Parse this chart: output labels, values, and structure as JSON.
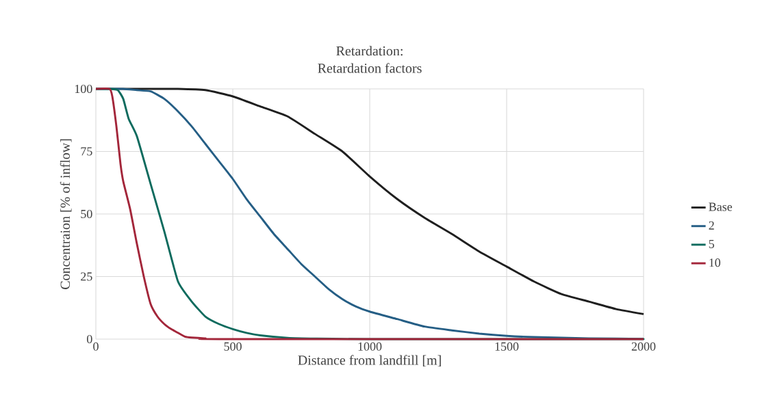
{
  "chart_data": {
    "type": "line",
    "title": "Retardation:",
    "subtitle": "Retardation factors",
    "xlabel": "Distance from landfill [m]",
    "ylabel": "Concentraion [% of inflow]",
    "xlim": [
      0,
      2000
    ],
    "xticks": [
      0,
      500,
      1000,
      1500,
      2000
    ],
    "ylim": [
      0,
      100
    ],
    "yticks": [
      0,
      25,
      50,
      75,
      100
    ],
    "grid": true,
    "legend": "right",
    "marker": "none",
    "line_style": "solid",
    "series": [
      {
        "name": "Base",
        "color": "#1f1f1f",
        "x": [
          0,
          100,
          200,
          300,
          400,
          500,
          600,
          700,
          800,
          900,
          1000,
          1100,
          1200,
          1300,
          1400,
          1500,
          1600,
          1700,
          1800,
          1900,
          2000
        ],
        "values": [
          100,
          100,
          100,
          100,
          99.5,
          97,
          93,
          89,
          82,
          75,
          65,
          56,
          48.5,
          42,
          35,
          29,
          23,
          18,
          15,
          12,
          10
        ]
      },
      {
        "name": "2",
        "color": "#255e85",
        "x": [
          0,
          50,
          100,
          150,
          200,
          250,
          300,
          350,
          400,
          450,
          500,
          550,
          600,
          650,
          700,
          750,
          800,
          850,
          900,
          950,
          1000,
          1100,
          1200,
          1300,
          1400,
          1500,
          1600,
          1800,
          2000
        ],
        "values": [
          100,
          100,
          100,
          99.5,
          99,
          96,
          91,
          85,
          78,
          71,
          64,
          56,
          49,
          42,
          36,
          30,
          25,
          20,
          16,
          13,
          11,
          8,
          5,
          3.5,
          2.2,
          1.3,
          0.8,
          0.3,
          0.1
        ]
      },
      {
        "name": "5",
        "color": "#0e6b5e",
        "x": [
          0,
          50,
          80,
          100,
          120,
          150,
          200,
          250,
          300,
          350,
          400,
          450,
          500,
          550,
          600,
          700,
          800,
          1000,
          2000
        ],
        "values": [
          100,
          100,
          99.5,
          96,
          88,
          81,
          62,
          43,
          23,
          15,
          9,
          6,
          4,
          2.5,
          1.5,
          0.5,
          0.2,
          0,
          0
        ]
      },
      {
        "name": "10",
        "color": "#a3263a",
        "x": [
          0,
          50,
          60,
          75,
          90,
          100,
          125,
          150,
          175,
          200,
          225,
          250,
          275,
          300,
          325,
          350,
          400,
          450,
          2000
        ],
        "values": [
          100,
          100,
          97,
          85,
          70,
          63,
          52,
          38,
          25,
          14,
          9,
          6,
          4,
          2.5,
          1,
          0.6,
          0.3,
          0,
          0
        ]
      }
    ]
  }
}
